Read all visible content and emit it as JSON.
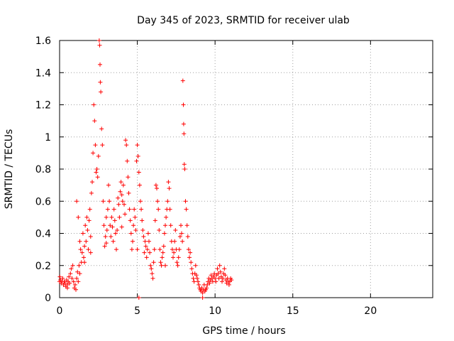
{
  "chart_data": {
    "type": "scatter",
    "title": "Day 345 of 2023, SRMTID for receiver ulab",
    "xlabel": "GPS time / hours",
    "ylabel": "SRMTID / TECUs",
    "xlim": [
      0,
      24
    ],
    "ylim": [
      0,
      1.6
    ],
    "xticks": [
      "0",
      "5",
      "10",
      "15",
      "20"
    ],
    "yticks": [
      "0",
      "0.2",
      "0.4",
      "0.6",
      "0.8",
      "1",
      "1.2",
      "1.4",
      "1.6"
    ],
    "grid": true,
    "marker": "+",
    "color": "#ff0000",
    "series": [
      {
        "name": "SRMTID",
        "points": [
          [
            0.0,
            0.1
          ],
          [
            0.05,
            0.11
          ],
          [
            0.1,
            0.09
          ],
          [
            0.15,
            0.1
          ],
          [
            0.2,
            0.12
          ],
          [
            0.25,
            0.08
          ],
          [
            0.3,
            0.1
          ],
          [
            0.35,
            0.09
          ],
          [
            0.4,
            0.07
          ],
          [
            0.45,
            0.11
          ],
          [
            0.5,
            0.08
          ],
          [
            0.55,
            0.1
          ],
          [
            0.6,
            0.13
          ],
          [
            0.65,
            0.09
          ],
          [
            0.7,
            0.15
          ],
          [
            0.75,
            0.18
          ],
          [
            0.8,
            0.12
          ],
          [
            0.85,
            0.2
          ],
          [
            0.9,
            0.1
          ],
          [
            0.95,
            0.06
          ],
          [
            1.0,
            0.08
          ],
          [
            1.05,
            0.05
          ],
          [
            1.1,
            0.12
          ],
          [
            1.15,
            0.16
          ],
          [
            1.2,
            0.1
          ],
          [
            1.25,
            0.2
          ],
          [
            1.3,
            0.15
          ],
          [
            1.1,
            0.6
          ],
          [
            1.2,
            0.5
          ],
          [
            1.3,
            0.35
          ],
          [
            1.35,
            0.3
          ],
          [
            1.4,
            0.22
          ],
          [
            1.45,
            0.28
          ],
          [
            1.5,
            0.4
          ],
          [
            1.55,
            0.25
          ],
          [
            1.6,
            0.32
          ],
          [
            1.65,
            0.45
          ],
          [
            1.7,
            0.35
          ],
          [
            1.75,
            0.5
          ],
          [
            1.8,
            0.42
          ],
          [
            1.85,
            0.3
          ],
          [
            1.9,
            0.48
          ],
          [
            1.95,
            0.55
          ],
          [
            2.0,
            0.38
          ],
          [
            2.05,
            0.65
          ],
          [
            2.1,
            0.72
          ],
          [
            2.15,
            0.9
          ],
          [
            2.2,
            1.2
          ],
          [
            2.25,
            1.1
          ],
          [
            2.3,
            0.95
          ],
          [
            2.35,
            0.78
          ],
          [
            2.4,
            0.8
          ],
          [
            2.45,
            0.75
          ],
          [
            2.5,
            0.88
          ],
          [
            2.55,
            1.6
          ],
          [
            2.58,
            1.57
          ],
          [
            2.6,
            1.45
          ],
          [
            2.62,
            1.34
          ],
          [
            2.65,
            1.28
          ],
          [
            2.7,
            1.05
          ],
          [
            2.75,
            0.95
          ],
          [
            2.8,
            0.6
          ],
          [
            2.85,
            0.45
          ],
          [
            2.9,
            0.32
          ],
          [
            2.95,
            0.38
          ],
          [
            3.0,
            0.5
          ],
          [
            3.05,
            0.42
          ],
          [
            3.1,
            0.55
          ],
          [
            3.15,
            0.7
          ],
          [
            3.2,
            0.6
          ],
          [
            3.25,
            0.45
          ],
          [
            3.3,
            0.38
          ],
          [
            3.35,
            0.5
          ],
          [
            3.4,
            0.44
          ],
          [
            3.45,
            0.35
          ],
          [
            3.5,
            0.55
          ],
          [
            3.55,
            0.48
          ],
          [
            3.6,
            0.4
          ],
          [
            3.65,
            0.3
          ],
          [
            3.7,
            0.42
          ],
          [
            3.75,
            0.62
          ],
          [
            3.8,
            0.58
          ],
          [
            3.85,
            0.5
          ],
          [
            3.9,
            0.66
          ],
          [
            3.95,
            0.72
          ],
          [
            4.0,
            0.64
          ],
          [
            4.05,
            0.6
          ],
          [
            4.1,
            0.7
          ],
          [
            4.15,
            0.58
          ],
          [
            4.2,
            0.52
          ],
          [
            4.25,
            0.98
          ],
          [
            4.3,
            0.95
          ],
          [
            4.35,
            0.85
          ],
          [
            4.4,
            0.75
          ],
          [
            4.45,
            0.65
          ],
          [
            4.5,
            0.55
          ],
          [
            4.55,
            0.48
          ],
          [
            4.6,
            0.4
          ],
          [
            4.65,
            0.3
          ],
          [
            4.7,
            0.35
          ],
          [
            4.75,
            0.45
          ],
          [
            4.8,
            0.55
          ],
          [
            4.85,
            0.5
          ],
          [
            4.9,
            0.42
          ],
          [
            4.95,
            0.85
          ],
          [
            5.0,
            0.95
          ],
          [
            5.05,
            0.88
          ],
          [
            5.1,
            0.78
          ],
          [
            5.15,
            0.7
          ],
          [
            5.2,
            0.6
          ],
          [
            5.25,
            0.55
          ],
          [
            5.3,
            0.48
          ],
          [
            5.35,
            0.42
          ],
          [
            5.4,
            0.38
          ],
          [
            5.45,
            0.28
          ],
          [
            5.5,
            0.35
          ],
          [
            5.55,
            0.32
          ],
          [
            5.6,
            0.25
          ],
          [
            5.65,
            0.3
          ],
          [
            5.7,
            0.4
          ],
          [
            5.75,
            0.35
          ],
          [
            5.8,
            0.28
          ],
          [
            5.85,
            0.2
          ],
          [
            5.9,
            0.18
          ],
          [
            5.95,
            0.15
          ],
          [
            6.0,
            0.12
          ],
          [
            6.05,
            0.22
          ],
          [
            6.1,
            0.3
          ],
          [
            6.15,
            0.48
          ],
          [
            6.2,
            0.7
          ],
          [
            6.25,
            0.68
          ],
          [
            6.3,
            0.6
          ],
          [
            6.35,
            0.55
          ],
          [
            6.4,
            0.42
          ],
          [
            6.45,
            0.3
          ],
          [
            6.5,
            0.22
          ],
          [
            6.55,
            0.2
          ],
          [
            6.6,
            0.25
          ],
          [
            6.65,
            0.28
          ],
          [
            6.7,
            0.32
          ],
          [
            6.75,
            0.4
          ],
          [
            6.8,
            0.45
          ],
          [
            6.85,
            0.5
          ],
          [
            6.9,
            0.55
          ],
          [
            6.95,
            0.6
          ],
          [
            7.0,
            0.72
          ],
          [
            7.05,
            0.68
          ],
          [
            7.1,
            0.55
          ],
          [
            7.15,
            0.45
          ],
          [
            7.2,
            0.35
          ],
          [
            7.25,
            0.3
          ],
          [
            7.3,
            0.25
          ],
          [
            7.35,
            0.28
          ],
          [
            7.4,
            0.35
          ],
          [
            7.45,
            0.42
          ],
          [
            7.5,
            0.3
          ],
          [
            7.55,
            0.22
          ],
          [
            7.6,
            0.2
          ],
          [
            7.65,
            0.25
          ],
          [
            7.7,
            0.3
          ],
          [
            7.75,
            0.38
          ],
          [
            7.8,
            0.45
          ],
          [
            7.85,
            0.4
          ],
          [
            7.9,
            0.35
          ],
          [
            7.93,
            1.35
          ],
          [
            7.96,
            1.2
          ],
          [
            7.98,
            1.08
          ],
          [
            8.0,
            1.02
          ],
          [
            8.02,
            0.83
          ],
          [
            8.05,
            0.8
          ],
          [
            8.1,
            0.6
          ],
          [
            8.15,
            0.55
          ],
          [
            8.2,
            0.45
          ],
          [
            8.25,
            0.38
          ],
          [
            8.3,
            0.3
          ],
          [
            8.35,
            0.25
          ],
          [
            8.4,
            0.28
          ],
          [
            8.45,
            0.22
          ],
          [
            8.5,
            0.18
          ],
          [
            8.55,
            0.15
          ],
          [
            8.6,
            0.12
          ],
          [
            8.65,
            0.1
          ],
          [
            8.7,
            0.15
          ],
          [
            8.75,
            0.2
          ],
          [
            8.8,
            0.14
          ],
          [
            8.85,
            0.12
          ],
          [
            8.9,
            0.1
          ],
          [
            8.95,
            0.08
          ],
          [
            9.0,
            0.06
          ],
          [
            9.05,
            0.05
          ],
          [
            9.1,
            0.04
          ],
          [
            9.15,
            0.06
          ],
          [
            9.2,
            0.03
          ],
          [
            9.25,
            0.05
          ],
          [
            9.3,
            0.08
          ],
          [
            9.35,
            0.04
          ],
          [
            9.4,
            0.05
          ],
          [
            9.45,
            0.06
          ],
          [
            9.5,
            0.08
          ],
          [
            9.55,
            0.1
          ],
          [
            9.6,
            0.12
          ],
          [
            9.65,
            0.09
          ],
          [
            9.7,
            0.11
          ],
          [
            9.75,
            0.14
          ],
          [
            9.8,
            0.12
          ],
          [
            9.85,
            0.1
          ],
          [
            9.9,
            0.13
          ],
          [
            9.95,
            0.15
          ],
          [
            10.0,
            0.12
          ],
          [
            10.05,
            0.1
          ],
          [
            10.1,
            0.14
          ],
          [
            10.15,
            0.18
          ],
          [
            10.2,
            0.15
          ],
          [
            10.25,
            0.12
          ],
          [
            10.3,
            0.2
          ],
          [
            10.35,
            0.16
          ],
          [
            10.4,
            0.13
          ],
          [
            10.45,
            0.1
          ],
          [
            10.5,
            0.12
          ],
          [
            10.55,
            0.15
          ],
          [
            10.6,
            0.18
          ],
          [
            10.65,
            0.14
          ],
          [
            10.7,
            0.11
          ],
          [
            10.75,
            0.09
          ],
          [
            10.8,
            0.12
          ],
          [
            10.85,
            0.1
          ],
          [
            10.9,
            0.08
          ],
          [
            10.95,
            0.1
          ],
          [
            11.0,
            0.12
          ],
          [
            11.05,
            0.11
          ],
          [
            5.1,
            0.0
          ],
          [
            9.2,
            0.0
          ],
          [
            0.02,
            0.13
          ],
          [
            0.5,
            0.06
          ],
          [
            1.6,
            0.22
          ],
          [
            2.0,
            0.28
          ],
          [
            3.0,
            0.34
          ],
          [
            4.0,
            0.44
          ],
          [
            5.0,
            0.3
          ],
          [
            6.8,
            0.2
          ]
        ]
      }
    ]
  }
}
